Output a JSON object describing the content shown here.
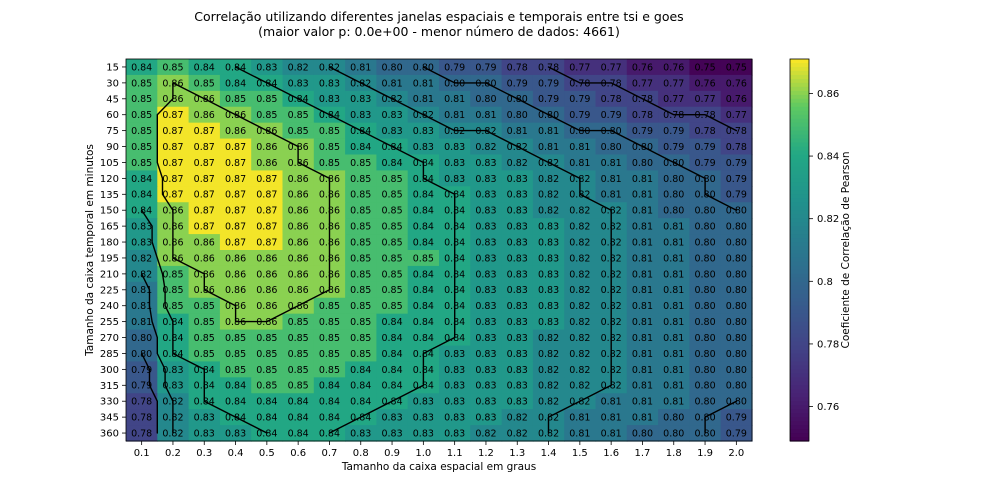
{
  "chart_data": {
    "type": "heatmap",
    "title_line1": "Correlação utilizando diferentes janelas espaciais e temporais entre tsi e goes",
    "title_line2": "(maior valor p: 0.0e+00 - menor número de dados: 4661)",
    "xlabel": "Tamanho da caixa espacial em graus",
    "ylabel": "Tamanho da caixa temporal em minutos",
    "colorbar_label": "Coeficiente de Correlação de Pearson",
    "colormap": "viridis",
    "vmin": 0.749,
    "vmax": 0.871,
    "colorbar_ticks": [
      "0.76",
      "0.78",
      "0.8",
      "0.82",
      "0.84",
      "0.86"
    ],
    "x_labels": [
      "0.1",
      "0.2",
      "0.3",
      "0.4",
      "0.5",
      "0.6",
      "0.7",
      "0.8",
      "0.9",
      "1.0",
      "1.1",
      "1.2",
      "1.3",
      "1.4",
      "1.5",
      "1.6",
      "1.7",
      "1.8",
      "1.9",
      "2.0"
    ],
    "y_labels": [
      "15",
      "30",
      "45",
      "60",
      "75",
      "90",
      "105",
      "120",
      "135",
      "150",
      "165",
      "180",
      "195",
      "210",
      "225",
      "240",
      "255",
      "270",
      "285",
      "300",
      "315",
      "330",
      "345",
      "360"
    ],
    "values": [
      [
        0.84,
        0.85,
        0.84,
        0.84,
        0.83,
        0.82,
        0.82,
        0.81,
        0.8,
        0.8,
        0.79,
        0.79,
        0.78,
        0.78,
        0.77,
        0.77,
        0.76,
        0.76,
        0.75,
        0.75
      ],
      [
        0.85,
        0.86,
        0.85,
        0.84,
        0.84,
        0.83,
        0.83,
        0.82,
        0.81,
        0.81,
        0.8,
        0.8,
        0.79,
        0.79,
        0.78,
        0.78,
        0.77,
        0.77,
        0.76,
        0.76
      ],
      [
        0.85,
        0.86,
        0.86,
        0.85,
        0.85,
        0.84,
        0.83,
        0.83,
        0.82,
        0.81,
        0.81,
        0.8,
        0.8,
        0.79,
        0.79,
        0.78,
        0.78,
        0.77,
        0.77,
        0.76
      ],
      [
        0.85,
        0.87,
        0.86,
        0.86,
        0.85,
        0.85,
        0.84,
        0.83,
        0.83,
        0.82,
        0.81,
        0.81,
        0.8,
        0.8,
        0.79,
        0.79,
        0.78,
        0.78,
        0.78,
        0.77
      ],
      [
        0.85,
        0.87,
        0.87,
        0.86,
        0.86,
        0.85,
        0.85,
        0.84,
        0.83,
        0.83,
        0.82,
        0.82,
        0.81,
        0.81,
        0.8,
        0.8,
        0.79,
        0.79,
        0.78,
        0.78
      ],
      [
        0.85,
        0.87,
        0.87,
        0.87,
        0.86,
        0.86,
        0.85,
        0.84,
        0.84,
        0.83,
        0.83,
        0.82,
        0.82,
        0.81,
        0.81,
        0.8,
        0.8,
        0.79,
        0.79,
        0.78
      ],
      [
        0.85,
        0.87,
        0.87,
        0.87,
        0.86,
        0.86,
        0.85,
        0.85,
        0.84,
        0.84,
        0.83,
        0.83,
        0.82,
        0.82,
        0.81,
        0.81,
        0.8,
        0.8,
        0.79,
        0.79
      ],
      [
        0.84,
        0.87,
        0.87,
        0.87,
        0.87,
        0.86,
        0.86,
        0.85,
        0.85,
        0.84,
        0.83,
        0.83,
        0.83,
        0.82,
        0.82,
        0.81,
        0.81,
        0.8,
        0.8,
        0.79
      ],
      [
        0.84,
        0.87,
        0.87,
        0.87,
        0.87,
        0.86,
        0.86,
        0.85,
        0.85,
        0.84,
        0.84,
        0.83,
        0.83,
        0.82,
        0.82,
        0.81,
        0.81,
        0.8,
        0.8,
        0.79
      ],
      [
        0.84,
        0.86,
        0.87,
        0.87,
        0.87,
        0.86,
        0.86,
        0.85,
        0.85,
        0.84,
        0.84,
        0.83,
        0.83,
        0.82,
        0.82,
        0.82,
        0.81,
        0.8,
        0.8,
        0.8
      ],
      [
        0.83,
        0.86,
        0.87,
        0.87,
        0.87,
        0.86,
        0.86,
        0.85,
        0.85,
        0.84,
        0.84,
        0.83,
        0.83,
        0.83,
        0.82,
        0.82,
        0.81,
        0.81,
        0.8,
        0.8
      ],
      [
        0.83,
        0.86,
        0.86,
        0.87,
        0.87,
        0.86,
        0.86,
        0.85,
        0.85,
        0.84,
        0.84,
        0.83,
        0.83,
        0.83,
        0.82,
        0.82,
        0.81,
        0.81,
        0.8,
        0.8
      ],
      [
        0.82,
        0.86,
        0.86,
        0.86,
        0.86,
        0.86,
        0.86,
        0.85,
        0.85,
        0.85,
        0.84,
        0.83,
        0.83,
        0.83,
        0.82,
        0.82,
        0.81,
        0.81,
        0.8,
        0.8
      ],
      [
        0.82,
        0.85,
        0.86,
        0.86,
        0.86,
        0.86,
        0.86,
        0.85,
        0.85,
        0.84,
        0.84,
        0.83,
        0.83,
        0.83,
        0.82,
        0.82,
        0.81,
        0.81,
        0.8,
        0.8
      ],
      [
        0.81,
        0.85,
        0.86,
        0.86,
        0.86,
        0.86,
        0.86,
        0.85,
        0.85,
        0.84,
        0.84,
        0.83,
        0.83,
        0.83,
        0.82,
        0.82,
        0.81,
        0.81,
        0.8,
        0.8
      ],
      [
        0.81,
        0.85,
        0.85,
        0.86,
        0.86,
        0.86,
        0.85,
        0.85,
        0.85,
        0.84,
        0.84,
        0.83,
        0.83,
        0.83,
        0.82,
        0.82,
        0.81,
        0.81,
        0.8,
        0.8
      ],
      [
        0.81,
        0.84,
        0.85,
        0.86,
        0.86,
        0.85,
        0.85,
        0.85,
        0.84,
        0.84,
        0.84,
        0.83,
        0.83,
        0.83,
        0.82,
        0.82,
        0.81,
        0.81,
        0.8,
        0.8
      ],
      [
        0.8,
        0.84,
        0.85,
        0.85,
        0.85,
        0.85,
        0.85,
        0.85,
        0.84,
        0.84,
        0.84,
        0.83,
        0.83,
        0.82,
        0.82,
        0.82,
        0.81,
        0.81,
        0.8,
        0.8
      ],
      [
        0.8,
        0.84,
        0.85,
        0.85,
        0.85,
        0.85,
        0.85,
        0.85,
        0.84,
        0.84,
        0.83,
        0.83,
        0.83,
        0.82,
        0.82,
        0.82,
        0.81,
        0.81,
        0.8,
        0.8
      ],
      [
        0.79,
        0.83,
        0.84,
        0.85,
        0.85,
        0.85,
        0.85,
        0.84,
        0.84,
        0.84,
        0.83,
        0.83,
        0.83,
        0.82,
        0.82,
        0.82,
        0.81,
        0.81,
        0.8,
        0.8
      ],
      [
        0.79,
        0.83,
        0.84,
        0.84,
        0.85,
        0.85,
        0.84,
        0.84,
        0.84,
        0.84,
        0.83,
        0.83,
        0.83,
        0.82,
        0.82,
        0.82,
        0.81,
        0.81,
        0.8,
        0.8
      ],
      [
        0.78,
        0.82,
        0.84,
        0.84,
        0.84,
        0.84,
        0.84,
        0.84,
        0.84,
        0.83,
        0.83,
        0.83,
        0.83,
        0.82,
        0.82,
        0.81,
        0.81,
        0.81,
        0.8,
        0.8
      ],
      [
        0.78,
        0.82,
        0.83,
        0.84,
        0.84,
        0.84,
        0.84,
        0.84,
        0.83,
        0.83,
        0.83,
        0.83,
        0.82,
        0.82,
        0.81,
        0.81,
        0.81,
        0.8,
        0.8,
        0.79
      ],
      [
        0.78,
        0.82,
        0.83,
        0.83,
        0.84,
        0.84,
        0.84,
        0.83,
        0.83,
        0.83,
        0.83,
        0.82,
        0.82,
        0.82,
        0.81,
        0.81,
        0.8,
        0.8,
        0.8,
        0.79
      ]
    ],
    "contour_levels": [
      0.78,
      0.8,
      0.82,
      0.84,
      0.86
    ],
    "grid": false
  }
}
